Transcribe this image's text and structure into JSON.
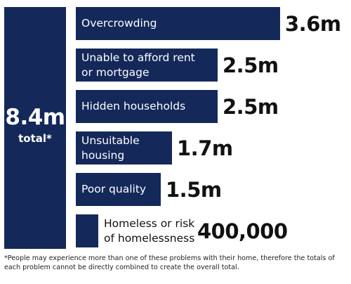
{
  "total": {
    "value": "8.4m",
    "label": "total*"
  },
  "chart_data": {
    "type": "bar",
    "orientation": "horizontal",
    "categories": [
      "Overcrowding",
      "Unable to afford rent\nor mortgage",
      "Hidden households",
      "Unsuitable\nhousing",
      "Poor quality",
      "Homeless or risk\nof homelessness"
    ],
    "values": [
      3600000,
      2500000,
      2500000,
      1700000,
      1500000,
      400000
    ],
    "value_labels": [
      "3.6m",
      "2.5m",
      "2.5m",
      "1.7m",
      "1.5m",
      "400,000"
    ],
    "color": "#14285a",
    "grid": false,
    "legend": "none"
  },
  "footnote": "*People may experience more than one of these problems with their home, therefore the totals of each problem cannot be directly combined to create the overall total."
}
